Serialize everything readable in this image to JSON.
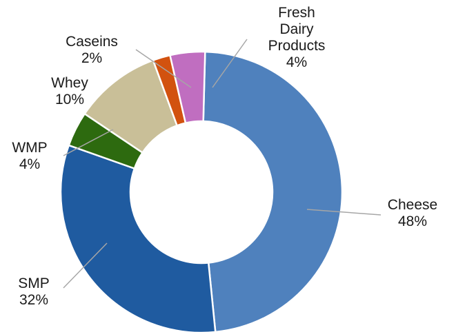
{
  "chart_data": {
    "type": "pie",
    "donut": true,
    "title": "",
    "slices": [
      {
        "label": "Cheese",
        "value": 48,
        "value_label": "48%",
        "color": "#4F81BD"
      },
      {
        "label": "SMP",
        "value": 32,
        "value_label": "32%",
        "color": "#1F5BA0"
      },
      {
        "label": "WMP",
        "value": 4,
        "value_label": "4%",
        "color": "#2D6A0F"
      },
      {
        "label": "Whey",
        "value": 10,
        "value_label": "10%",
        "color": "#C9BF98"
      },
      {
        "label": "Caseins",
        "value": 2,
        "value_label": "2%",
        "color": "#D2520F"
      },
      {
        "label": "Fresh Dairy Products",
        "value": 4,
        "value_label": "4%",
        "color": "#C06EC0"
      }
    ],
    "legend": "none",
    "leader_lines": true
  }
}
